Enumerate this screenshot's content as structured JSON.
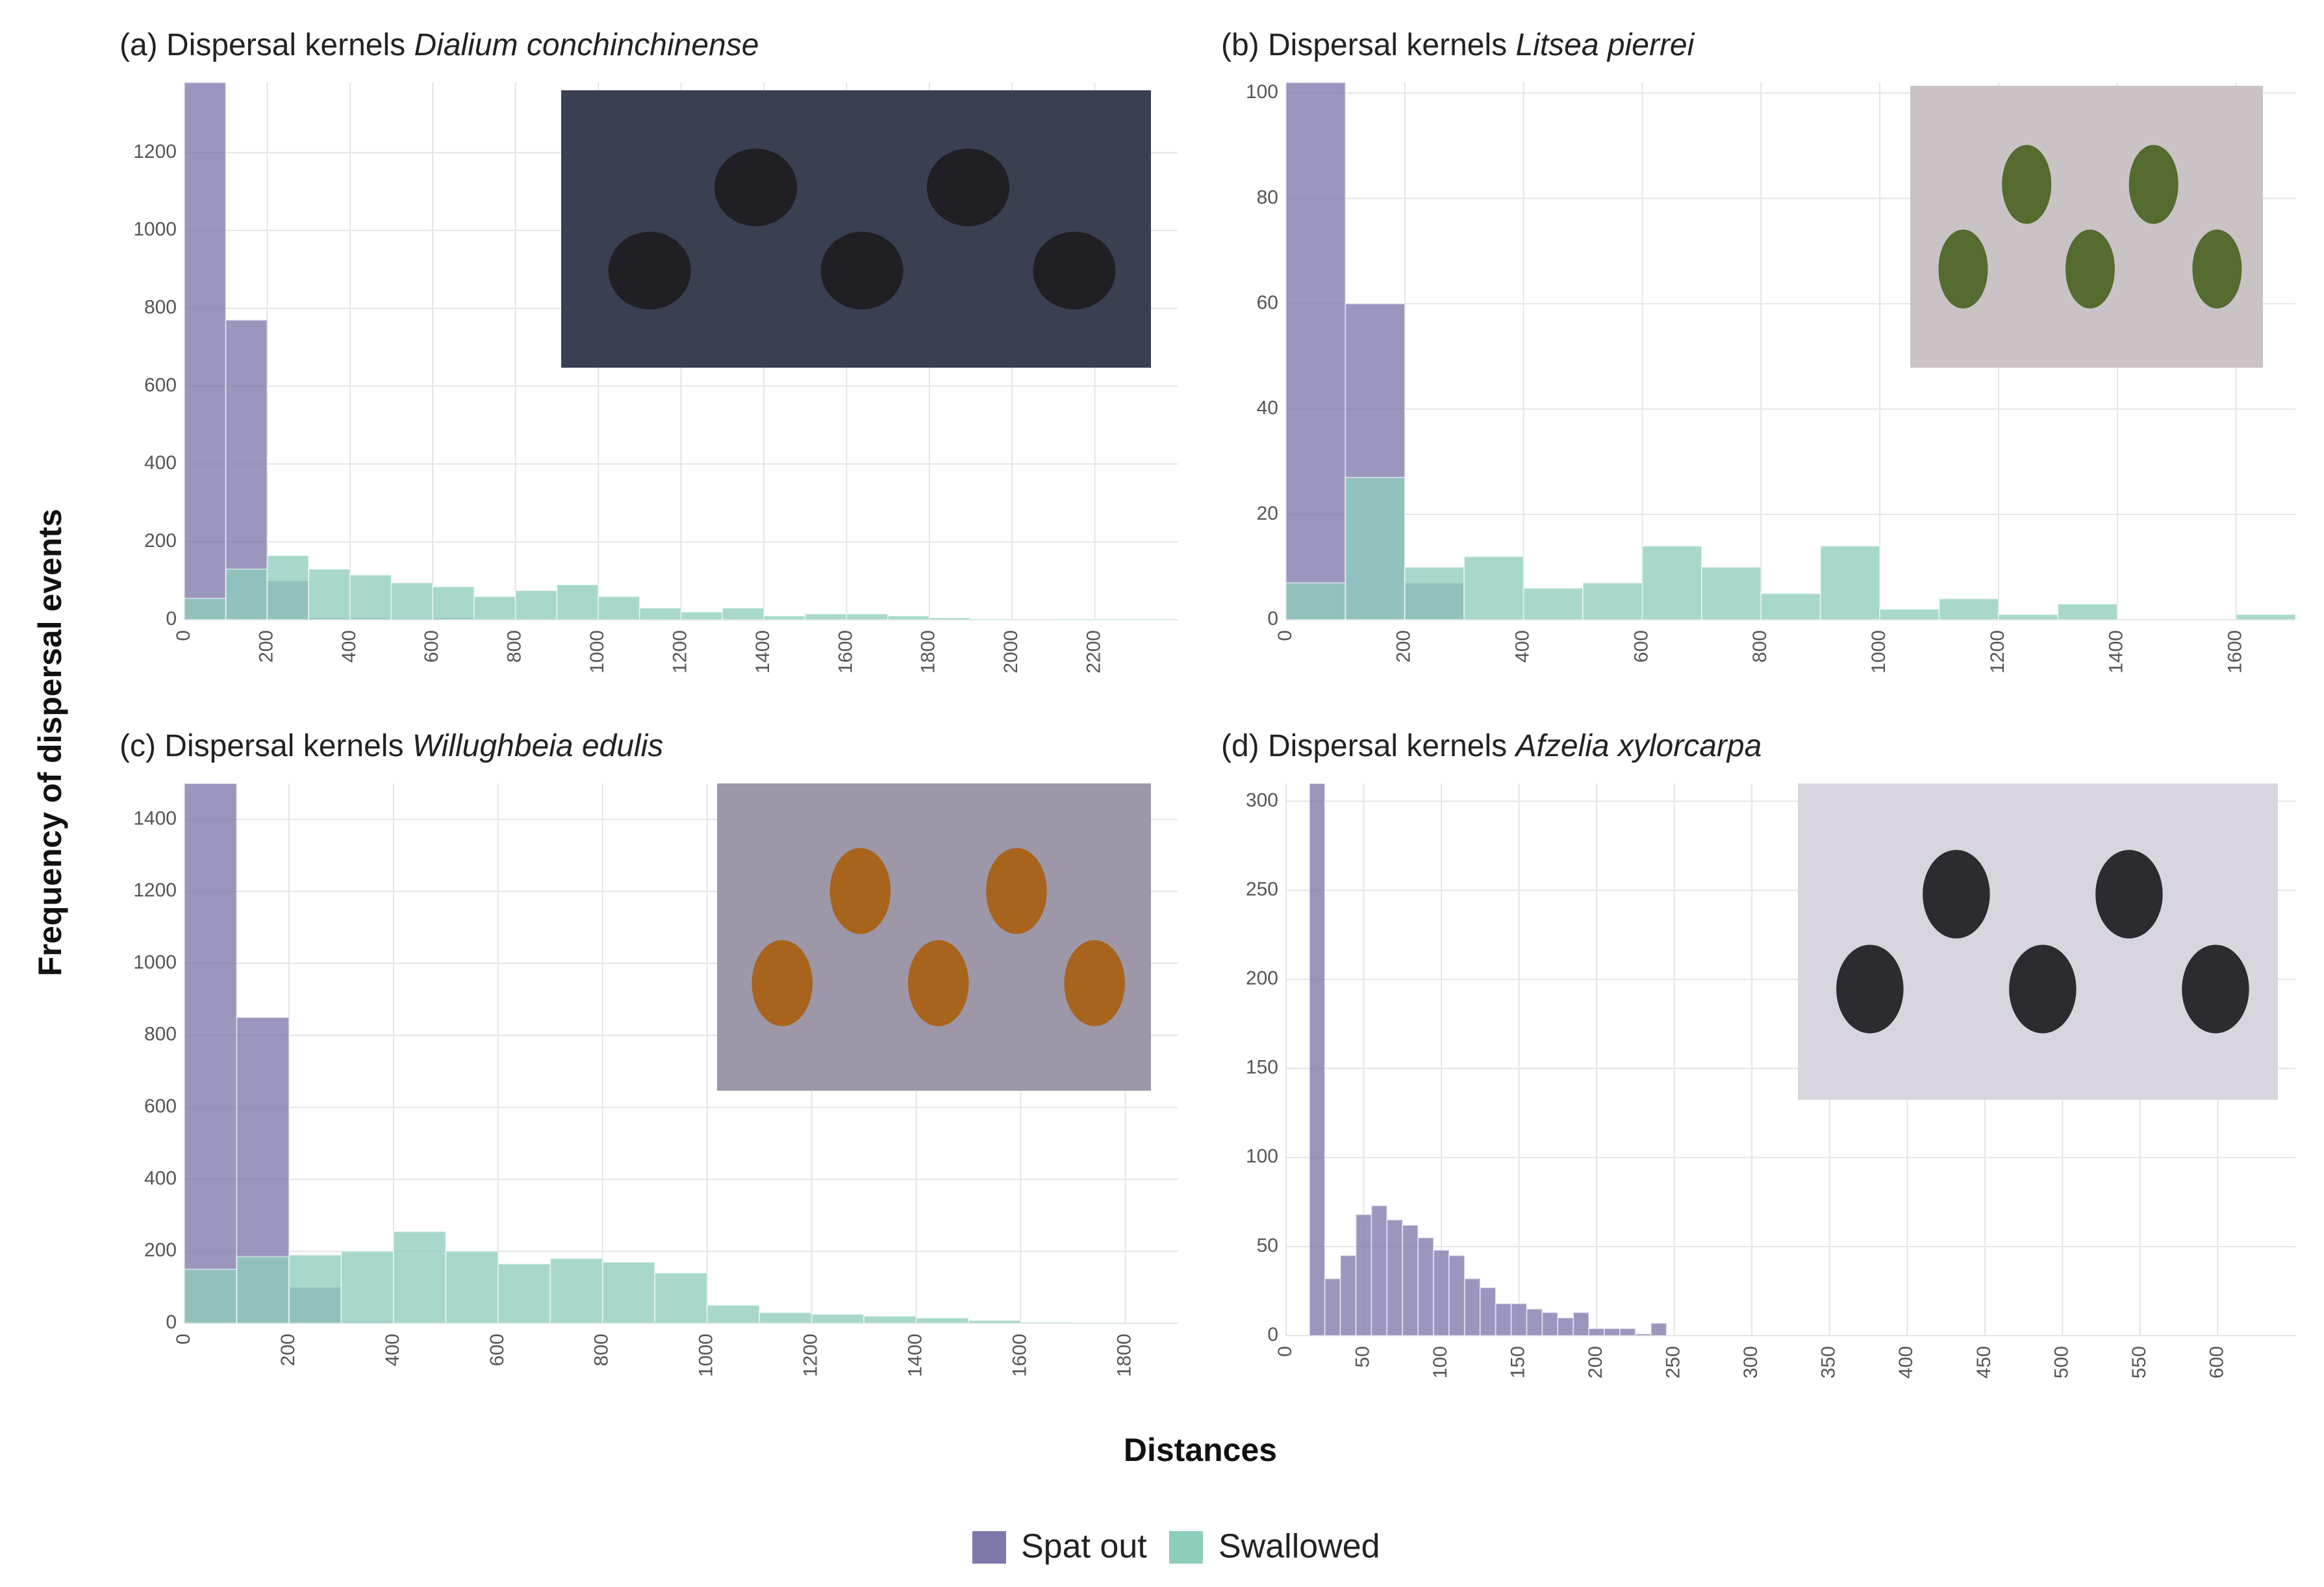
{
  "figure": {
    "ylabel": "Frequency of dispersal events",
    "xlabel": "Distances"
  },
  "chart_data": [
    {
      "type": "histogram",
      "title": "(a) Dispersal kernels",
      "title_species": "Dialium conchinchinense",
      "bins": [
        0,
        100,
        200,
        300,
        400,
        500,
        600,
        700,
        800,
        900,
        1000,
        1100,
        1200,
        1300,
        1400,
        1500,
        1600,
        1700,
        1800,
        1900,
        2000,
        2100,
        2200,
        2300,
        2400
      ],
      "series": [
        {
          "name": "Spat out",
          "color": "#7d79ac",
          "values": [
            1380,
            770,
            100,
            5,
            5,
            3,
            5,
            2,
            2,
            2,
            2,
            1,
            1,
            1,
            1,
            0,
            0,
            0,
            0,
            0,
            0,
            0,
            0,
            0
          ]
        },
        {
          "name": "Swallowed",
          "color": "#8ecdbc",
          "values": [
            55,
            130,
            165,
            130,
            115,
            95,
            85,
            60,
            75,
            90,
            60,
            30,
            20,
            30,
            10,
            15,
            15,
            10,
            5,
            2,
            0,
            2,
            2,
            2
          ]
        }
      ],
      "xlim": [
        0,
        2400
      ],
      "xticks": [
        0,
        200,
        400,
        600,
        800,
        1000,
        1200,
        1400,
        1600,
        1800,
        2000,
        2200
      ],
      "ylim": [
        0,
        1380
      ],
      "yticks": [
        0,
        200,
        400,
        600,
        800,
        1000,
        1200
      ],
      "grid": true
    },
    {
      "type": "histogram",
      "title": "(b) Dispersal kernels",
      "title_species": "Litsea pierrei",
      "bins": [
        0,
        100,
        200,
        300,
        400,
        500,
        600,
        700,
        800,
        900,
        1000,
        1100,
        1200,
        1300,
        1400,
        1500,
        1600,
        1700
      ],
      "series": [
        {
          "name": "Spat out",
          "color": "#7d79ac",
          "values": [
            102,
            60,
            7,
            0,
            0,
            0,
            0,
            0,
            0,
            0,
            0,
            0,
            0,
            0,
            0,
            0,
            0
          ]
        },
        {
          "name": "Swallowed",
          "color": "#8ecdbc",
          "values": [
            7,
            27,
            10,
            12,
            6,
            7,
            14,
            10,
            5,
            14,
            2,
            4,
            1,
            3,
            0,
            0,
            1
          ]
        }
      ],
      "xlim": [
        0,
        1700
      ],
      "xticks": [
        0,
        200,
        400,
        600,
        800,
        1000,
        1200,
        1400,
        1600
      ],
      "ylim": [
        0,
        102
      ],
      "yticks": [
        0,
        20,
        40,
        60,
        80,
        100
      ],
      "grid": true
    },
    {
      "type": "histogram",
      "title": "(c) Dispersal kernels",
      "title_species": "Willughbeia edulis",
      "bins": [
        0,
        100,
        200,
        300,
        400,
        500,
        600,
        700,
        800,
        900,
        1000,
        1100,
        1200,
        1300,
        1400,
        1500,
        1600,
        1700,
        1800
      ],
      "series": [
        {
          "name": "Spat out",
          "color": "#7d79ac",
          "values": [
            1500,
            850,
            100,
            5,
            0,
            0,
            0,
            0,
            0,
            0,
            0,
            0,
            0,
            0,
            0,
            0,
            0,
            0
          ]
        },
        {
          "name": "Swallowed",
          "color": "#8ecdbc",
          "values": [
            150,
            185,
            190,
            200,
            255,
            200,
            165,
            180,
            170,
            140,
            50,
            30,
            25,
            20,
            15,
            8,
            3,
            2
          ]
        }
      ],
      "xlim": [
        0,
        1900
      ],
      "xticks": [
        0,
        200,
        400,
        600,
        800,
        1000,
        1200,
        1400,
        1600,
        1800
      ],
      "ylim": [
        0,
        1500
      ],
      "yticks": [
        0,
        200,
        400,
        600,
        800,
        1000,
        1200,
        1400
      ],
      "grid": true
    },
    {
      "type": "histogram",
      "title": "(d) Dispersal kernels",
      "title_species": "Afzelia xylorcarpa",
      "bins": [
        15,
        25,
        35,
        45,
        55,
        65,
        75,
        85,
        95,
        105,
        115,
        125,
        135,
        145,
        155,
        165,
        175,
        185,
        195,
        205,
        215,
        225,
        235,
        245
      ],
      "series": [
        {
          "name": "Spat out",
          "color": "#7d79ac",
          "values": [
            310,
            32,
            45,
            68,
            73,
            65,
            62,
            55,
            48,
            45,
            32,
            27,
            18,
            18,
            15,
            13,
            10,
            13,
            4,
            4,
            4,
            1,
            7
          ]
        }
      ],
      "xlim": [
        0,
        650
      ],
      "xticks": [
        0,
        50,
        100,
        150,
        200,
        250,
        300,
        350,
        400,
        450,
        500,
        550,
        600
      ],
      "ylim": [
        0,
        310
      ],
      "yticks": [
        0,
        50,
        100,
        150,
        200,
        250,
        300
      ],
      "grid": true
    }
  ]
}
